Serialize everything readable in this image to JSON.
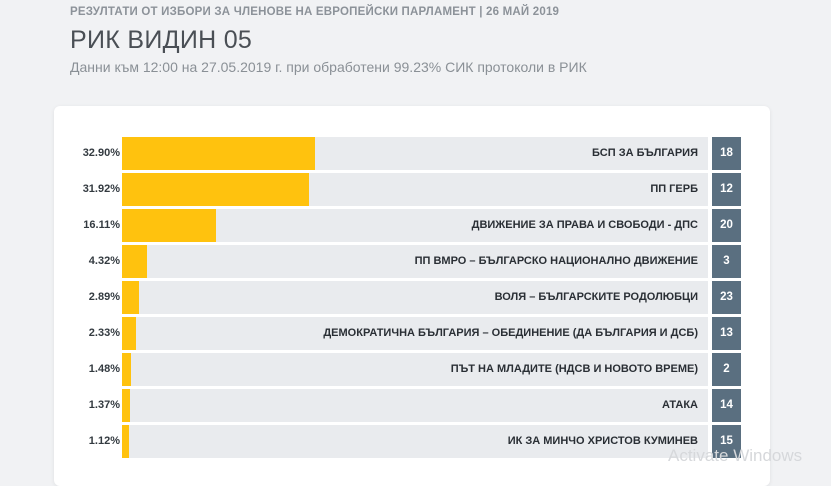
{
  "header": {
    "super_title": "РЕЗУЛТАТИ ОТ ИЗБОРИ ЗА ЧЛЕНОВЕ НА ЕВРОПЕЙСКИ ПАРЛАМЕНТ | 26 МАЙ 2019",
    "title": "РИК ВИДИН 05",
    "subtitle": "Данни към 12:00 на 27.05.2019 г. при обработени 99.23% СИК протоколи в РИК"
  },
  "results": [
    {
      "percent_label": "32.90%",
      "percent": 32.9,
      "party": "БСП ЗА БЪЛГАРИЯ",
      "number": "18"
    },
    {
      "percent_label": "31.92%",
      "percent": 31.92,
      "party": "ПП ГЕРБ",
      "number": "12"
    },
    {
      "percent_label": "16.11%",
      "percent": 16.11,
      "party": "ДВИЖЕНИЕ ЗА ПРАВА И СВОБОДИ - ДПС",
      "number": "20"
    },
    {
      "percent_label": "4.32%",
      "percent": 4.32,
      "party": "ПП ВМРО – БЪЛГАРСКО НАЦИОНАЛНО ДВИЖЕНИЕ",
      "number": "3"
    },
    {
      "percent_label": "2.89%",
      "percent": 2.89,
      "party": "ВОЛЯ – БЪЛГАРСКИТЕ РОДОЛЮБЦИ",
      "number": "23"
    },
    {
      "percent_label": "2.33%",
      "percent": 2.33,
      "party": "ДЕМОКРАТИЧНА БЪЛГАРИЯ – ОБЕДИНЕНИЕ (ДА БЪЛГАРИЯ И ДСБ)",
      "number": "13"
    },
    {
      "percent_label": "1.48%",
      "percent": 1.48,
      "party": "ПЪТ НА МЛАДИТЕ (НДСВ И НОВОТО ВРЕМЕ)",
      "number": "2"
    },
    {
      "percent_label": "1.37%",
      "percent": 1.37,
      "party": "АТАКА",
      "number": "14"
    },
    {
      "percent_label": "1.12%",
      "percent": 1.12,
      "party": "ИК ЗА МИНЧО ХРИСТОВ КУМИНЕВ",
      "number": "15"
    }
  ],
  "colors": {
    "bar_fill": "#ffc20e",
    "track": "#e9ebee",
    "number_badge": "#5a6f80"
  },
  "watermark": "Activate Windows"
}
